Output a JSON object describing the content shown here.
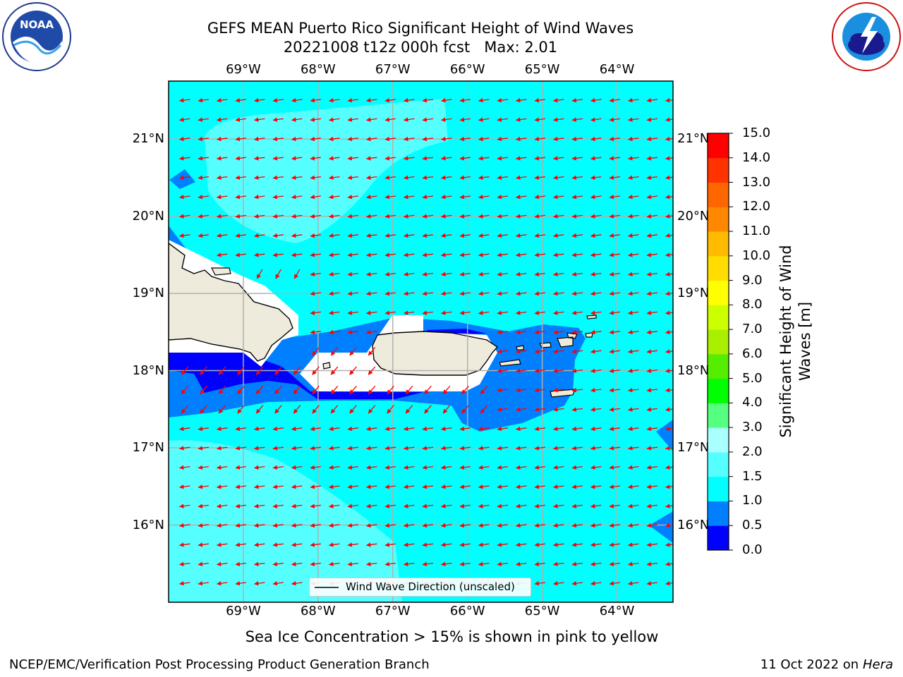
{
  "header": {
    "title_line1": "GEFS MEAN Puerto Rico Significant Height of Wind Waves",
    "title_line2": "20221008 t12z 000h fcst   Max: 2.01"
  },
  "logos": {
    "left": "noaa-logo",
    "right": "national-weather-service-logo",
    "left_text": "NOAA",
    "left_ring_text": "NATIONAL OCEANIC AND ATMOSPHERIC ADMINISTRATION · U.S. DEPARTMENT OF COMMERCE",
    "right_ring_text": "NATIONAL WEATHER SERVICE"
  },
  "map": {
    "lon_labels": [
      "69°W",
      "68°W",
      "67°W",
      "66°W",
      "65°W",
      "64°W"
    ],
    "lat_labels": [
      "21°N",
      "20°N",
      "19°N",
      "18°N",
      "17°N",
      "16°N"
    ],
    "lon_values": [
      -69,
      -68,
      -67,
      -66,
      -65,
      -64
    ],
    "lat_values": [
      21,
      20,
      19,
      18,
      17,
      16
    ],
    "extent": {
      "lon_min": -70.0,
      "lon_max": -63.25,
      "lat_min": 15.0,
      "lat_max": 21.75
    },
    "ocean_color": "#00ffff",
    "land_color": "#efebdc",
    "arrow_color": "#ff0000",
    "legend_label": "Wind Wave Direction (unscaled)"
  },
  "colorbar": {
    "label": "Significant Height of Wind Waves [m]",
    "ticks": [
      "0.0",
      "0.5",
      "1.0",
      "1.5",
      "2.0",
      "3.0",
      "4.0",
      "5.0",
      "6.0",
      "7.0",
      "8.0",
      "9.0",
      "10.0",
      "11.0",
      "12.0",
      "13.0",
      "14.0",
      "15.0"
    ],
    "colors": [
      "#0000ff",
      "#0080ff",
      "#00ffff",
      "#55ffff",
      "#aaffff",
      "#55ff80",
      "#00ff00",
      "#55ee00",
      "#aaee00",
      "#ccff00",
      "#ffff00",
      "#ffdd00",
      "#ffbb00",
      "#ff8800",
      "#ff6600",
      "#ff3300",
      "#ff0000"
    ]
  },
  "note": "Sea Ice Concentration > 15% is shown in pink to yellow",
  "footer": {
    "left": "NCEP/EMC/Verification Post Processing Product Generation Branch",
    "date": "11 Oct 2022 on ",
    "machine": "Hera"
  }
}
